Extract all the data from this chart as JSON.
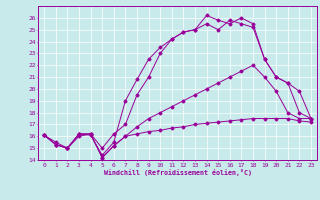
{
  "xlabel": "Windchill (Refroidissement éolien,°C)",
  "bg_color": "#c8eaea",
  "line_color": "#990099",
  "grid_color": "#ffffff",
  "xlim": [
    -0.5,
    23.5
  ],
  "ylim": [
    14,
    27
  ],
  "yticks": [
    14,
    15,
    16,
    17,
    18,
    19,
    20,
    21,
    22,
    23,
    24,
    25,
    26
  ],
  "xticks": [
    0,
    1,
    2,
    3,
    4,
    5,
    6,
    7,
    8,
    9,
    10,
    11,
    12,
    13,
    14,
    15,
    16,
    17,
    18,
    19,
    20,
    21,
    22,
    23
  ],
  "lines": [
    {
      "x": [
        0,
        1,
        2,
        3,
        4,
        5,
        6,
        7,
        8,
        9,
        10,
        11,
        12,
        13,
        14,
        15,
        16,
        17,
        18,
        19,
        20,
        21,
        22,
        23
      ],
      "y": [
        16.1,
        15.3,
        15.0,
        16.2,
        16.2,
        14.2,
        15.2,
        16.0,
        16.2,
        16.4,
        16.5,
        16.7,
        16.8,
        17.0,
        17.1,
        17.2,
        17.3,
        17.4,
        17.5,
        17.5,
        17.5,
        17.5,
        17.3,
        17.2
      ]
    },
    {
      "x": [
        0,
        1,
        2,
        3,
        4,
        5,
        6,
        7,
        8,
        9,
        10,
        11,
        12,
        13,
        14,
        15,
        16,
        17,
        18,
        19,
        20,
        21,
        22,
        23
      ],
      "y": [
        16.1,
        15.3,
        15.0,
        16.2,
        16.2,
        14.2,
        15.2,
        16.0,
        16.8,
        17.5,
        18.0,
        18.5,
        19.0,
        19.5,
        20.0,
        20.5,
        21.0,
        21.5,
        22.0,
        21.0,
        19.8,
        18.0,
        17.5,
        17.5
      ]
    },
    {
      "x": [
        0,
        1,
        2,
        3,
        4,
        5,
        6,
        7,
        8,
        9,
        10,
        11,
        12,
        13,
        14,
        15,
        16,
        17,
        18,
        19,
        20,
        21,
        22,
        23
      ],
      "y": [
        16.1,
        15.3,
        15.0,
        16.2,
        16.1,
        14.4,
        15.5,
        19.0,
        20.8,
        22.5,
        23.5,
        24.2,
        24.8,
        25.0,
        26.2,
        25.8,
        25.5,
        26.0,
        25.5,
        22.5,
        21.0,
        20.5,
        18.0,
        17.5
      ]
    },
    {
      "x": [
        0,
        1,
        2,
        3,
        4,
        5,
        6,
        7,
        8,
        9,
        10,
        11,
        12,
        13,
        14,
        15,
        16,
        17,
        18,
        19,
        20,
        21,
        22,
        23
      ],
      "y": [
        16.1,
        15.5,
        15.0,
        16.0,
        16.2,
        15.0,
        16.2,
        17.0,
        19.5,
        21.0,
        23.0,
        24.2,
        24.8,
        25.0,
        25.5,
        25.0,
        25.8,
        25.5,
        25.2,
        22.5,
        21.0,
        20.5,
        19.8,
        17.5
      ]
    }
  ]
}
